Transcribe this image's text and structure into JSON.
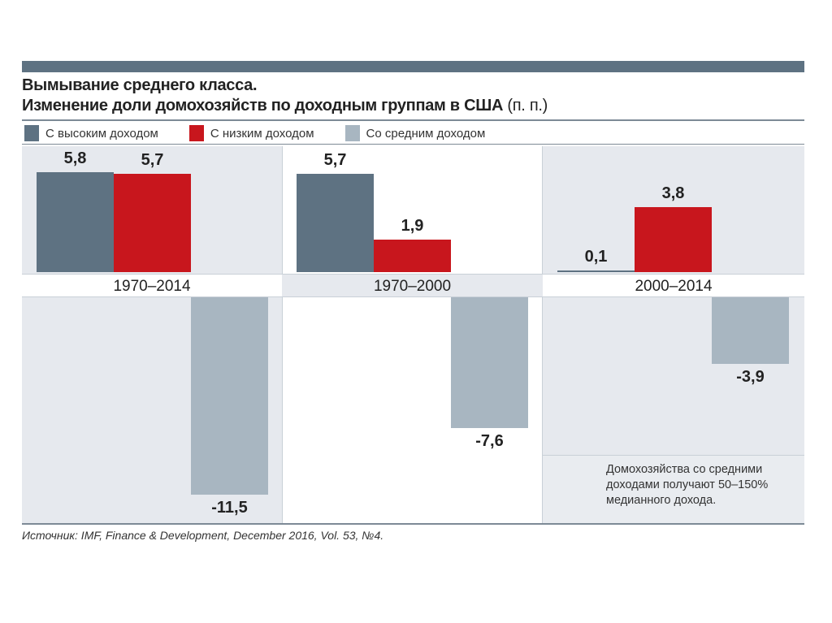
{
  "chart_data": {
    "type": "bar",
    "title": "Вымывание среднего класса.",
    "subtitle": "Изменение доли домохозяйств по доходным группам в США",
    "unit": "(п. п.)",
    "categories": [
      "1970–2014",
      "1970–2000",
      "2000–2014"
    ],
    "series": [
      {
        "name": "С высоким доходом",
        "color": "#5e7282",
        "values": [
          5.8,
          5.7,
          0.1
        ],
        "labels": [
          "5,8",
          "5,7",
          "0,1"
        ]
      },
      {
        "name": "С низким доходом",
        "color": "#c8161d",
        "values": [
          5.7,
          1.9,
          3.8
        ],
        "labels": [
          "5,7",
          "1,9",
          "3,8"
        ]
      },
      {
        "name": "Со средним доходом",
        "color": "#a8b6c1",
        "values": [
          -11.5,
          -7.6,
          -3.9
        ],
        "labels": [
          "-11,5",
          "-7,6",
          "-3,9"
        ]
      }
    ],
    "note": [
      "Домохозяйства со средними",
      "доходами получают 50–150%",
      "медианного дохода."
    ],
    "source": "Источник: IMF, Finance & Development, December 2016, Vol. 53, №4."
  }
}
